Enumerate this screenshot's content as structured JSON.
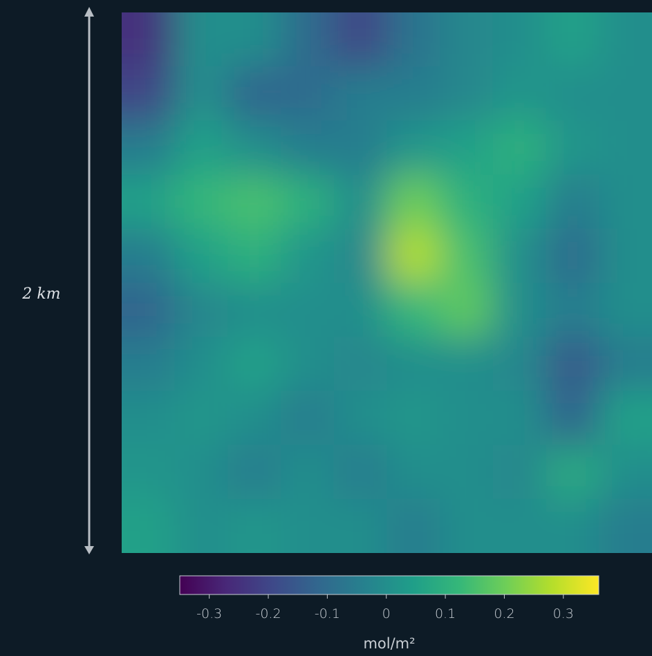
{
  "chart_data": {
    "type": "heatmap",
    "scale_label": "2 km",
    "colorbar_label": "mol/m²",
    "colormap": [
      "#440154",
      "#482878",
      "#3e4989",
      "#31688e",
      "#26828e",
      "#1f9e89",
      "#35b779",
      "#6ece58",
      "#b5de2b",
      "#fde725"
    ],
    "zlim": [
      -0.35,
      0.36
    ],
    "zticks": [
      -0.3,
      -0.2,
      -0.1,
      0,
      0.1,
      0.2,
      0.3
    ],
    "z": [
      [
        -0.25,
        0,
        0,
        -0.1,
        -0.2,
        -0.08,
        -0.02,
        0,
        0.05,
        0
      ],
      [
        -0.2,
        0,
        -0.12,
        -0.1,
        -0.05,
        -0.05,
        -0.02,
        0.02,
        0,
        0
      ],
      [
        -0.05,
        0.05,
        0,
        -0.05,
        -0.05,
        0.02,
        0.05,
        0.1,
        0.02,
        0
      ],
      [
        0.05,
        0.12,
        0.15,
        0.1,
        0,
        0.2,
        0.1,
        0.05,
        -0.05,
        0
      ],
      [
        -0.05,
        0.05,
        0.1,
        0.02,
        -0.02,
        0.28,
        0.15,
        0,
        -0.1,
        0
      ],
      [
        -0.12,
        -0.02,
        0,
        0,
        0,
        0.12,
        0.18,
        0,
        -0.05,
        0
      ],
      [
        -0.05,
        0,
        0.05,
        0,
        -0.02,
        0,
        0,
        -0.02,
        -0.15,
        -0.05
      ],
      [
        0,
        0.02,
        0,
        -0.05,
        0,
        0.02,
        0,
        0,
        -0.12,
        0.05
      ],
      [
        0.02,
        0,
        -0.05,
        0,
        -0.05,
        0,
        0,
        -0.02,
        0.08,
        0
      ],
      [
        0.05,
        0,
        0.02,
        0,
        0,
        -0.05,
        0,
        0,
        0,
        -0.05
      ]
    ]
  }
}
